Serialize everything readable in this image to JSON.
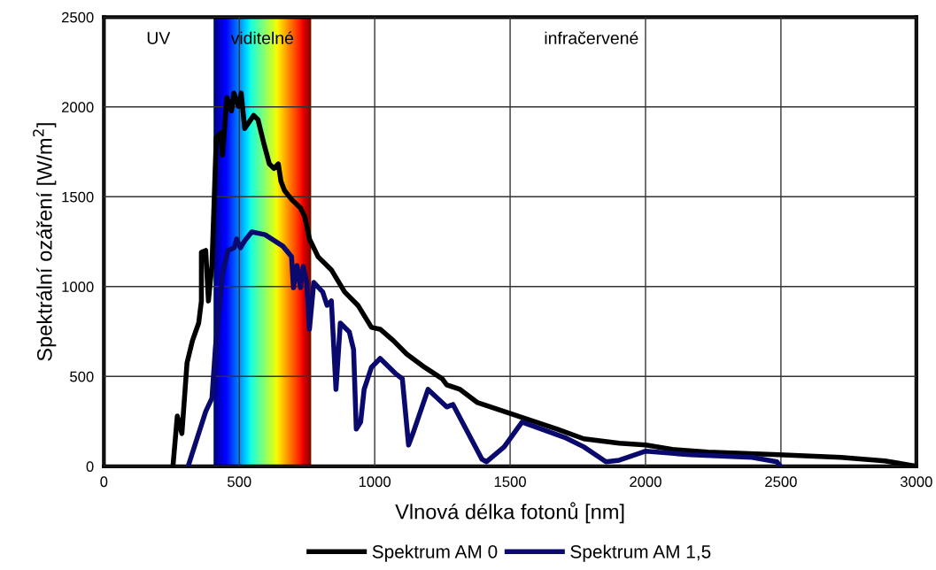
{
  "chart_data": {
    "type": "line",
    "xlabel": "Vlnová délka fotonů [nm]",
    "ylabel": "Spektrální ozáření [W/m$^{2}$]",
    "xlim": [
      0,
      3000
    ],
    "ylim": [
      0,
      2500
    ],
    "xticks": [
      0,
      500,
      1000,
      1500,
      2000,
      2500,
      3000
    ],
    "yticks": [
      0,
      500,
      1000,
      1500,
      2000,
      2500
    ],
    "grid": true,
    "legend": "bottom",
    "marker": "none",
    "line_style": "solid",
    "bands": [
      {
        "axis": "x",
        "from": 405,
        "to": 765,
        "label": "viditelné"
      }
    ],
    "annotations": [
      "UV",
      "infračervené"
    ],
    "series": [
      {
        "name": "Spektrum AM 0",
        "color": "#000000",
        "x": [
          255,
          271,
          288,
          307,
          327,
          350,
          360,
          360,
          376,
          386,
          399,
          415,
          431,
          438,
          454,
          471,
          480,
          497,
          507,
          520,
          553,
          569,
          589,
          611,
          628,
          644,
          654,
          667,
          693,
          726,
          742,
          749,
          759,
          791,
          840,
          889,
          938,
          988,
          1020,
          1069,
          1118,
          1184,
          1249,
          1266,
          1315,
          1380,
          1478,
          1576,
          1674,
          1772,
          1903,
          2001,
          2099,
          2230,
          2492,
          2721,
          2884,
          3000
        ],
        "values": [
          0,
          280,
          182,
          576,
          699,
          797,
          920,
          1191,
          1201,
          920,
          1117,
          1831,
          1855,
          1732,
          2052,
          1978,
          2077,
          2003,
          2077,
          1880,
          1953,
          1929,
          1806,
          1683,
          1658,
          1683,
          1585,
          1535,
          1486,
          1437,
          1388,
          1339,
          1265,
          1166,
          1093,
          970,
          896,
          773,
          763,
          699,
          625,
          551,
          487,
          453,
          428,
          354,
          305,
          256,
          207,
          153,
          128,
          118,
          94,
          79,
          64,
          49,
          30,
          0
        ]
      },
      {
        "name": "Spektrum AM 1,5",
        "color": "#0a0a6e",
        "x": [
          311,
          376,
          399,
          412,
          422,
          438,
          458,
          481,
          490,
          504,
          520,
          546,
          595,
          661,
          693,
          700,
          713,
          726,
          736,
          749,
          759,
          775,
          808,
          824,
          840,
          857,
          873,
          906,
          922,
          932,
          948,
          961,
          988,
          1020,
          1076,
          1102,
          1125,
          1141,
          1197,
          1266,
          1289,
          1396,
          1413,
          1478,
          1544,
          1707,
          1772,
          1854,
          1903,
          2001,
          2165,
          2394,
          2485,
          2498
        ],
        "values": [
          0,
          305,
          379,
          664,
          822,
          1068,
          1201,
          1216,
          1265,
          1216,
          1255,
          1304,
          1289,
          1225,
          1166,
          994,
          1117,
          994,
          1112,
          1023,
          763,
          1023,
          970,
          896,
          920,
          428,
          797,
          748,
          650,
          207,
          246,
          428,
          551,
          600,
          517,
          487,
          118,
          182,
          428,
          330,
          344,
          39,
          25,
          108,
          246,
          157,
          108,
          25,
          34,
          84,
          64,
          49,
          25,
          0
        ]
      }
    ]
  }
}
